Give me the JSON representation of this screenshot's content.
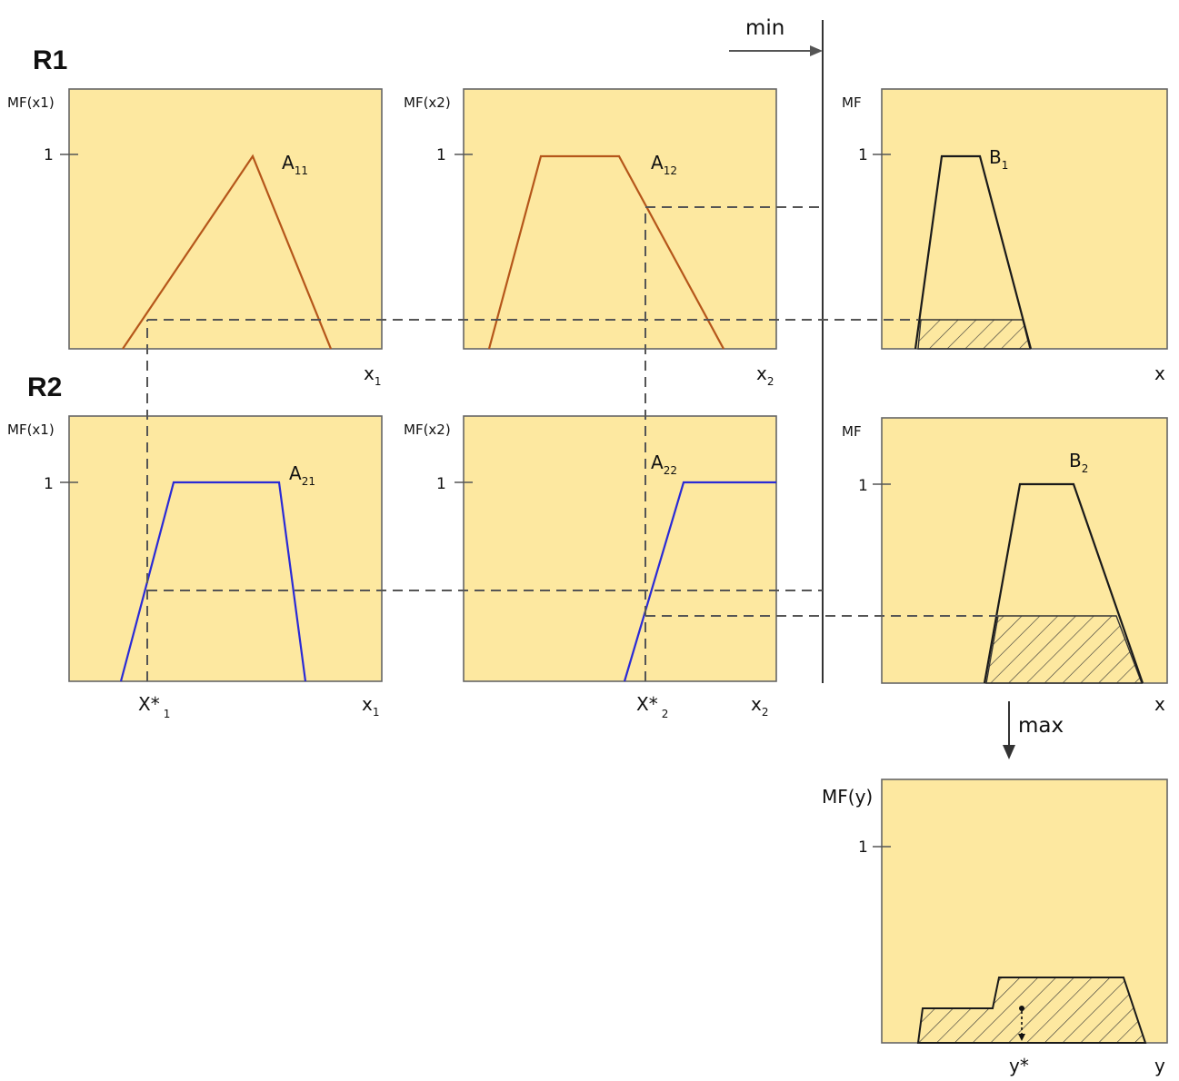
{
  "rules": [
    "R1",
    "R2"
  ],
  "operators": {
    "min": "min",
    "max": "max"
  },
  "labels": {
    "mf_x1": "MF(x1)",
    "mf_x2": "MF(x2)",
    "mf": "MF",
    "mf_y": "MF(y)",
    "one": "1",
    "x1_base": "x",
    "x1_sub": "1",
    "x2_base": "x",
    "x2_sub": "2",
    "x": "x",
    "y": "y",
    "y_star": "y*",
    "x1_star": "X*",
    "x1_star_sub": "1",
    "x2_star": "X*",
    "x2_star_sub": "2"
  },
  "curves": {
    "A11": {
      "base": "A",
      "sub": "11",
      "color": "#b5561a",
      "shape": "triangle"
    },
    "A12": {
      "base": "A",
      "sub": "12",
      "color": "#b5561a",
      "shape": "trapezoid"
    },
    "A21": {
      "base": "A",
      "sub": "21",
      "color": "#2a2ad6",
      "shape": "trapezoid"
    },
    "A22": {
      "base": "A",
      "sub": "22",
      "color": "#2a2ad6",
      "shape": "ramp"
    },
    "B1": {
      "base": "B",
      "sub": "1",
      "color": "#1a1a1a",
      "shape": "trapezoid"
    },
    "B2": {
      "base": "B",
      "sub": "2",
      "color": "#1a1a1a",
      "shape": "trapezoid"
    }
  },
  "colors": {
    "panel_fill": "#fde8a0",
    "guide": "#555555"
  }
}
